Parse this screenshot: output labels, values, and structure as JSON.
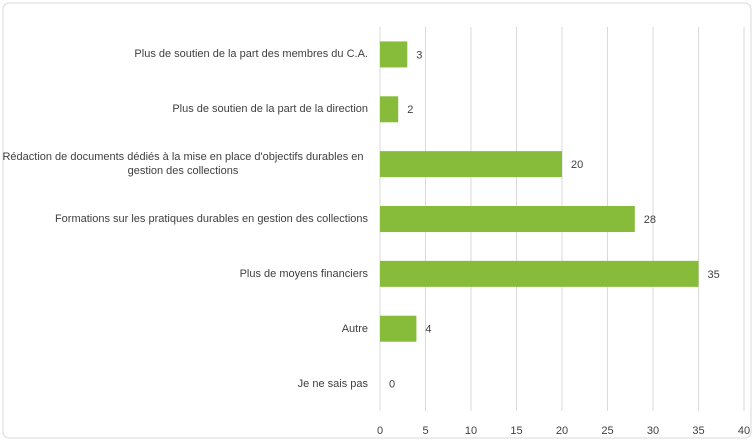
{
  "chart_data": {
    "type": "bar",
    "orientation": "horizontal",
    "categories": [
      "Plus de soutien de la part des membres du C.A.",
      "Plus de soutien de la part de la direction",
      "Rédaction de documents dédiés à la mise en place d'objectifs durables en gestion des collections",
      "Formations sur les pratiques durables en gestion des collections",
      "Plus de moyens financiers",
      "Autre",
      "Je ne sais pas"
    ],
    "values": [
      3,
      2,
      20,
      28,
      35,
      4,
      0
    ],
    "color": "#86bc3a",
    "xlim": [
      0,
      40
    ],
    "xticks": [
      0,
      5,
      10,
      15,
      20,
      25,
      30,
      35,
      40
    ],
    "grid": true
  }
}
